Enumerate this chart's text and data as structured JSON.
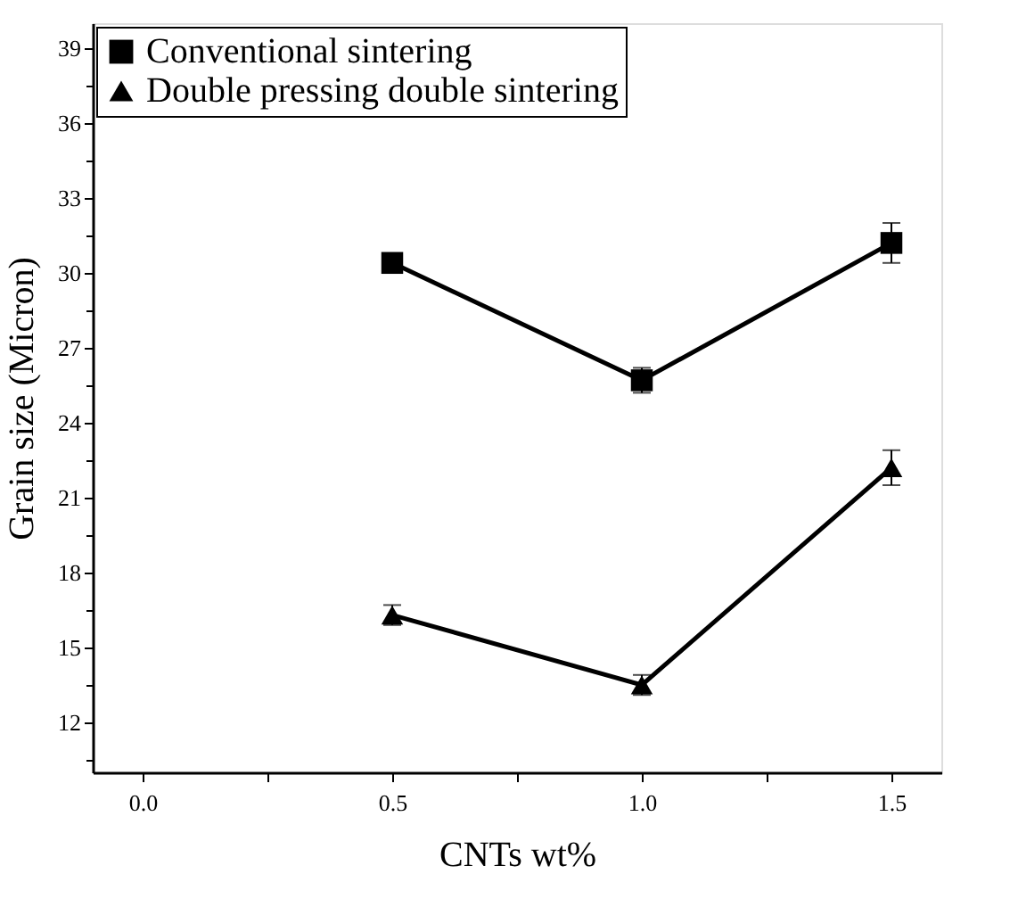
{
  "chart_data": {
    "type": "line",
    "xlabel": "CNTs wt%",
    "ylabel": "Grain size (Micron)",
    "x": [
      0.5,
      1.0,
      1.5
    ],
    "series": [
      {
        "name": "Conventional sintering",
        "color": "#000000",
        "marker": "square",
        "values": [
          30.4,
          25.7,
          31.2
        ],
        "errors": [
          0.3,
          0.5,
          0.8
        ]
      },
      {
        "name": "Double pressing double sintering",
        "color": "#000000",
        "marker": "triangle",
        "values": [
          16.3,
          13.5,
          22.2
        ],
        "errors": [
          0.4,
          0.4,
          0.7
        ]
      }
    ],
    "xlim": [
      -0.1,
      1.6
    ],
    "xticks": [
      {
        "value": 0,
        "label": "0.0"
      },
      {
        "value": 0.25,
        "label": null
      },
      {
        "value": 0.5,
        "label": "0.5"
      },
      {
        "value": 0.75,
        "label": null
      },
      {
        "value": 1.0,
        "label": "1.0"
      },
      {
        "value": 1.25,
        "label": null
      },
      {
        "value": 1.5,
        "label": "1.5"
      }
    ],
    "ylim": [
      10,
      40
    ],
    "yticks": [
      {
        "value": 10.5,
        "label": null
      },
      12,
      {
        "value": 13.5,
        "label": null
      },
      15,
      {
        "value": 16.5,
        "label": null
      },
      18,
      {
        "value": 19.5,
        "label": null
      },
      21,
      {
        "value": 22.5,
        "label": null
      },
      24,
      {
        "value": 25.5,
        "label": null
      },
      27,
      {
        "value": 28.5,
        "label": null
      },
      30,
      {
        "value": 31.5,
        "label": null
      },
      33,
      {
        "value": 34.5,
        "label": null
      },
      36,
      {
        "value": 37.5,
        "label": null
      },
      39
    ],
    "legend": "top left",
    "grid": false,
    "line_style": "solid"
  }
}
